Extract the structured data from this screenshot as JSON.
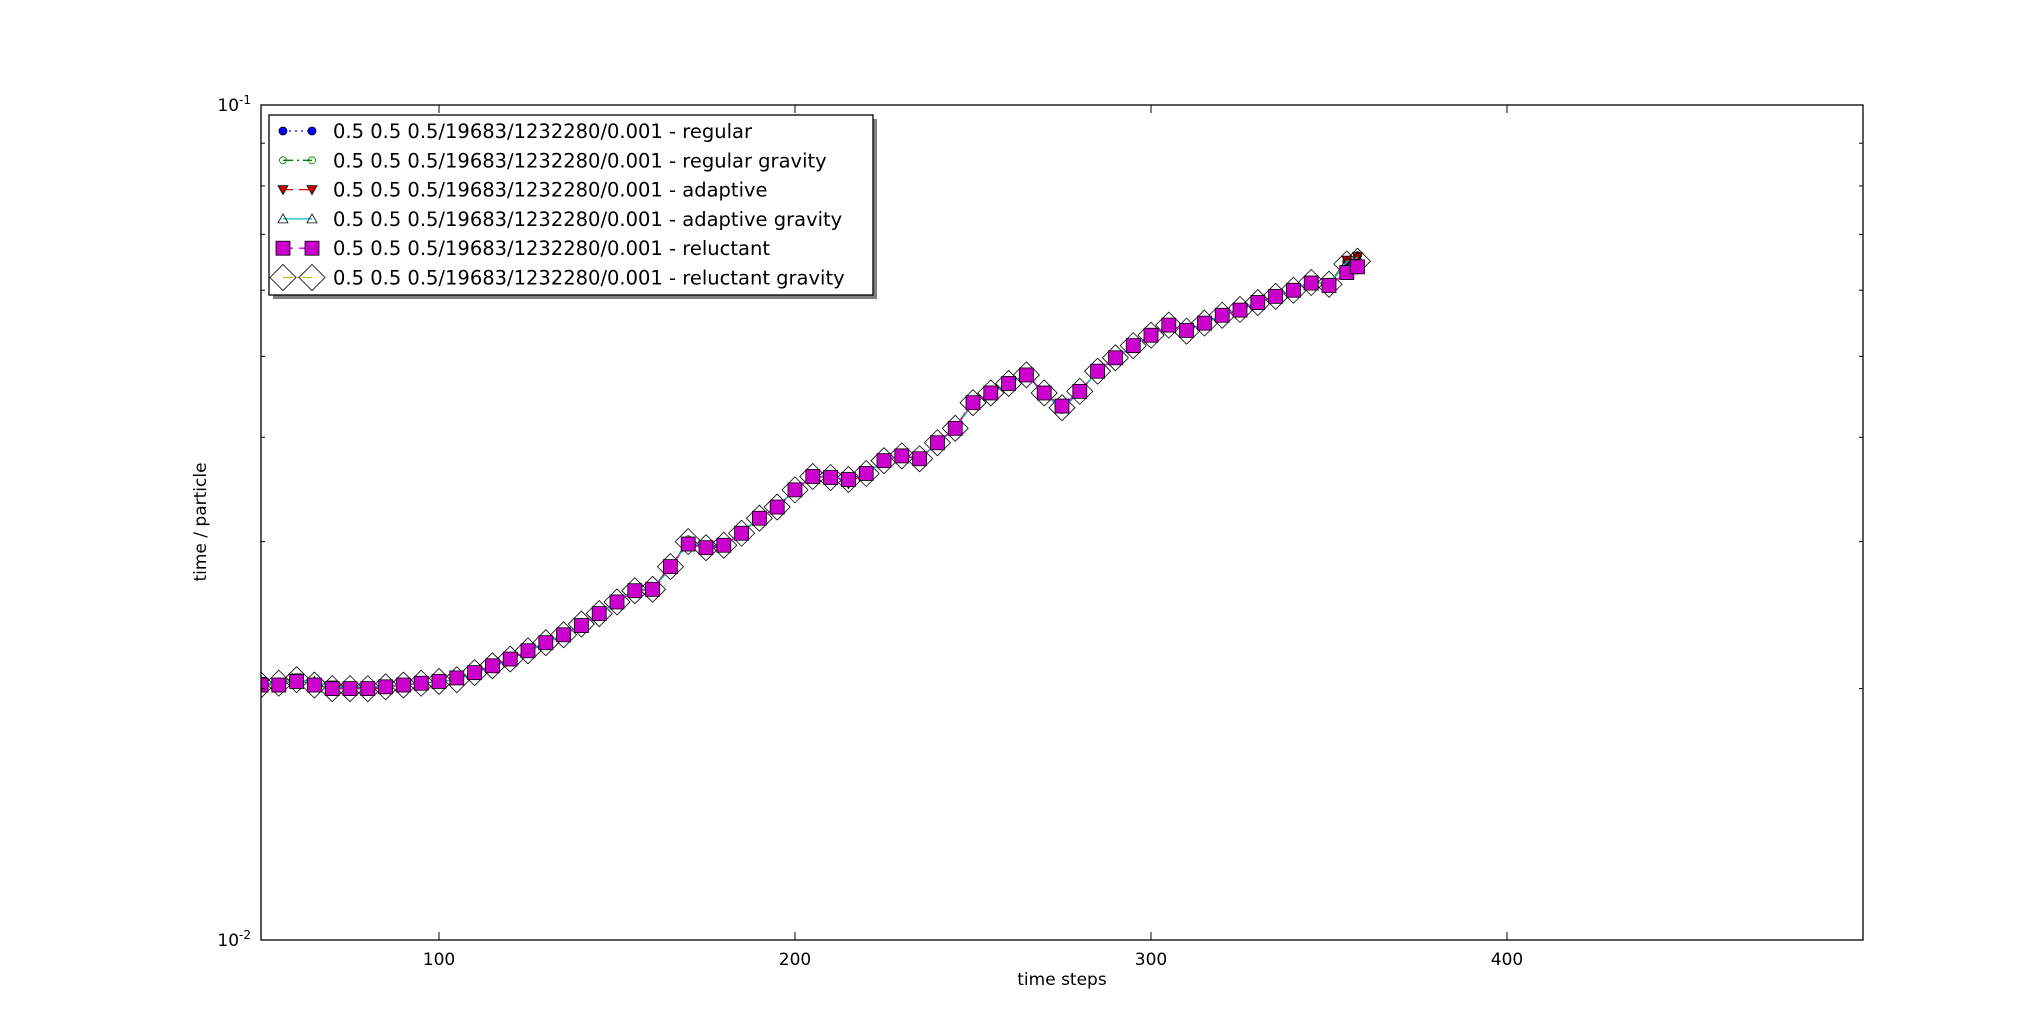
{
  "chart_data": {
    "type": "line",
    "title": "",
    "xlabel": "time steps",
    "ylabel": "time / particle",
    "xlim": [
      50,
      500
    ],
    "ylim": [
      0.01,
      0.1
    ],
    "yscale": "log",
    "xticks": [
      100,
      200,
      300,
      400
    ],
    "xtick_labels": [
      "100",
      "200",
      "300",
      "400"
    ],
    "yticks": [
      0.01,
      0.1
    ],
    "ytick_labels": [
      {
        "base": "10",
        "exp": "-2"
      },
      {
        "base": "10",
        "exp": "-1"
      }
    ],
    "legend_position": "top-left",
    "grid": false,
    "x": [
      50,
      55,
      60,
      65,
      70,
      75,
      80,
      85,
      90,
      95,
      100,
      105,
      110,
      115,
      120,
      125,
      130,
      135,
      140,
      145,
      150,
      155,
      160,
      165,
      170,
      175,
      180,
      185,
      190,
      195,
      200,
      205,
      210,
      215,
      220,
      225,
      230,
      235,
      240,
      245,
      250,
      255,
      260,
      265,
      270,
      275,
      280,
      285,
      290,
      295,
      300,
      305,
      310,
      315,
      320,
      325,
      330,
      335,
      340,
      345,
      350,
      355,
      358
    ],
    "series": [
      {
        "name": "0.5 0.5 0.5/19683/1232280/0.001 - regular",
        "color": "#0000ff",
        "marker": "circle",
        "line": "dotted",
        "values": [
          0.0203,
          0.0203,
          0.0205,
          0.0203,
          0.0201,
          0.02,
          0.02,
          0.0201,
          0.0202,
          0.0203,
          0.0204,
          0.0205,
          0.0209,
          0.0213,
          0.0217,
          0.0222,
          0.0227,
          0.0232,
          0.0239,
          0.0246,
          0.0254,
          0.0263,
          0.0262,
          0.028,
          0.03,
          0.0294,
          0.0296,
          0.0308,
          0.032,
          0.033,
          0.0346,
          0.036,
          0.0358,
          0.0355,
          0.0362,
          0.0375,
          0.0381,
          0.0376,
          0.0395,
          0.041,
          0.044,
          0.0452,
          0.0464,
          0.0475,
          0.0451,
          0.0432,
          0.0454,
          0.048,
          0.0498,
          0.0515,
          0.053,
          0.0545,
          0.0535,
          0.0548,
          0.056,
          0.057,
          0.058,
          0.059,
          0.06,
          0.0615,
          0.061,
          0.065,
          0.066
        ]
      },
      {
        "name": "0.5 0.5 0.5/19683/1232280/0.001 - regular gravity",
        "color": "#008000",
        "marker": "circle-open",
        "line": "dashdot",
        "values": [
          0.0202,
          0.0204,
          0.0206,
          0.0202,
          0.02,
          0.0201,
          0.0199,
          0.0202,
          0.0203,
          0.0202,
          0.0205,
          0.0206,
          0.021,
          0.0212,
          0.0218,
          0.0221,
          0.0228,
          0.0231,
          0.024,
          0.0245,
          0.0255,
          0.0262,
          0.0264,
          0.0278,
          0.0302,
          0.0296,
          0.0298,
          0.0306,
          0.0322,
          0.0328,
          0.0348,
          0.0358,
          0.036,
          0.0357,
          0.036,
          0.0377,
          0.0379,
          0.0378,
          0.0393,
          0.0412,
          0.0438,
          0.0455,
          0.0462,
          0.0477,
          0.0453,
          0.0435,
          0.0452,
          0.0482,
          0.0496,
          0.0517,
          0.0528,
          0.0547,
          0.0537,
          0.0546,
          0.0562,
          0.0568,
          0.0582,
          0.0588,
          0.0602,
          0.0613,
          0.0612,
          0.0648,
          0.0655
        ]
      },
      {
        "name": "0.5 0.5 0.5/19683/1232280/0.001 - adaptive",
        "color": "#cc0000",
        "marker": "triangle-down",
        "line": "dashed",
        "values": [
          0.0204,
          0.0202,
          0.0206,
          0.0203,
          0.0202,
          0.0201,
          0.02,
          0.02,
          0.0203,
          0.0204,
          0.0203,
          0.0206,
          0.0208,
          0.0214,
          0.0216,
          0.0223,
          0.0226,
          0.0233,
          0.0238,
          0.0247,
          0.0253,
          0.0264,
          0.0263,
          0.0281,
          0.0298,
          0.0295,
          0.0297,
          0.0309,
          0.0319,
          0.0331,
          0.0345,
          0.0361,
          0.0357,
          0.0352,
          0.0363,
          0.0374,
          0.0382,
          0.0377,
          0.0394,
          0.0411,
          0.0442,
          0.045,
          0.0466,
          0.0474,
          0.0452,
          0.0434,
          0.0455,
          0.0479,
          0.0499,
          0.0514,
          0.0531,
          0.0544,
          0.0538,
          0.0547,
          0.0561,
          0.0571,
          0.0579,
          0.0592,
          0.0599,
          0.0617,
          0.0611,
          0.0652,
          0.0658
        ]
      },
      {
        "name": "0.5 0.5 0.5/19683/1232280/0.001 - adaptive gravity",
        "color": "#00bfbf",
        "marker": "triangle-up-open",
        "line": "solid",
        "values": [
          0.0203,
          0.0203,
          0.0204,
          0.0204,
          0.0201,
          0.0201,
          0.0201,
          0.0201,
          0.0202,
          0.0203,
          0.0204,
          0.0205,
          0.0209,
          0.0212,
          0.0217,
          0.0222,
          0.0227,
          0.0232,
          0.0239,
          0.0246,
          0.0254,
          0.0263,
          0.0263,
          0.0279,
          0.03,
          0.0295,
          0.0297,
          0.0307,
          0.0321,
          0.0329,
          0.0347,
          0.0359,
          0.0359,
          0.0356,
          0.0361,
          0.0376,
          0.038,
          0.0377,
          0.0394,
          0.0411,
          0.0439,
          0.0453,
          0.0463,
          0.0476,
          0.0452,
          0.0433,
          0.0453,
          0.0481,
          0.0497,
          0.0516,
          0.0529,
          0.0546,
          0.0536,
          0.0547,
          0.0561,
          0.0569,
          0.0581,
          0.0589,
          0.0601,
          0.0614,
          0.0611,
          0.0649,
          0.0657
        ]
      },
      {
        "name": "0.5 0.5 0.5/19683/1232280/0.001 - reluctant",
        "color": "#cc00cc",
        "marker": "square",
        "line": "dashed",
        "values": [
          0.0202,
          0.0202,
          0.0204,
          0.0202,
          0.02,
          0.02,
          0.02,
          0.0201,
          0.0202,
          0.0203,
          0.0204,
          0.0206,
          0.0209,
          0.0213,
          0.0217,
          0.0222,
          0.0227,
          0.0232,
          0.0238,
          0.0246,
          0.0254,
          0.0262,
          0.0263,
          0.028,
          0.0298,
          0.0295,
          0.0297,
          0.0307,
          0.032,
          0.033,
          0.0346,
          0.0359,
          0.0358,
          0.0356,
          0.0362,
          0.0375,
          0.038,
          0.0377,
          0.0394,
          0.041,
          0.044,
          0.0452,
          0.0464,
          0.0475,
          0.0452,
          0.0436,
          0.0454,
          0.048,
          0.0498,
          0.0515,
          0.053,
          0.0545,
          0.0537,
          0.0548,
          0.056,
          0.0568,
          0.058,
          0.059,
          0.06,
          0.0612,
          0.0608,
          0.063,
          0.064
        ]
      },
      {
        "name": "0.5 0.5 0.5/19683/1232280/0.001 - reluctant gravity",
        "color": "#bfbf00",
        "marker": "diamond-open",
        "line": "dashdot",
        "values": [
          0.0202,
          0.0203,
          0.0205,
          0.0202,
          0.02,
          0.02,
          0.02,
          0.0201,
          0.0202,
          0.0203,
          0.0204,
          0.0205,
          0.0209,
          0.0213,
          0.0217,
          0.0222,
          0.0227,
          0.0232,
          0.0239,
          0.0246,
          0.0254,
          0.0262,
          0.0263,
          0.028,
          0.03,
          0.0295,
          0.0297,
          0.0307,
          0.032,
          0.033,
          0.0346,
          0.0359,
          0.0358,
          0.0356,
          0.0362,
          0.0375,
          0.038,
          0.0377,
          0.0394,
          0.041,
          0.044,
          0.0452,
          0.0464,
          0.0475,
          0.0452,
          0.0434,
          0.0454,
          0.048,
          0.0498,
          0.0515,
          0.053,
          0.0545,
          0.0536,
          0.0548,
          0.056,
          0.0569,
          0.058,
          0.059,
          0.06,
          0.0613,
          0.061,
          0.0645,
          0.065
        ]
      }
    ]
  }
}
